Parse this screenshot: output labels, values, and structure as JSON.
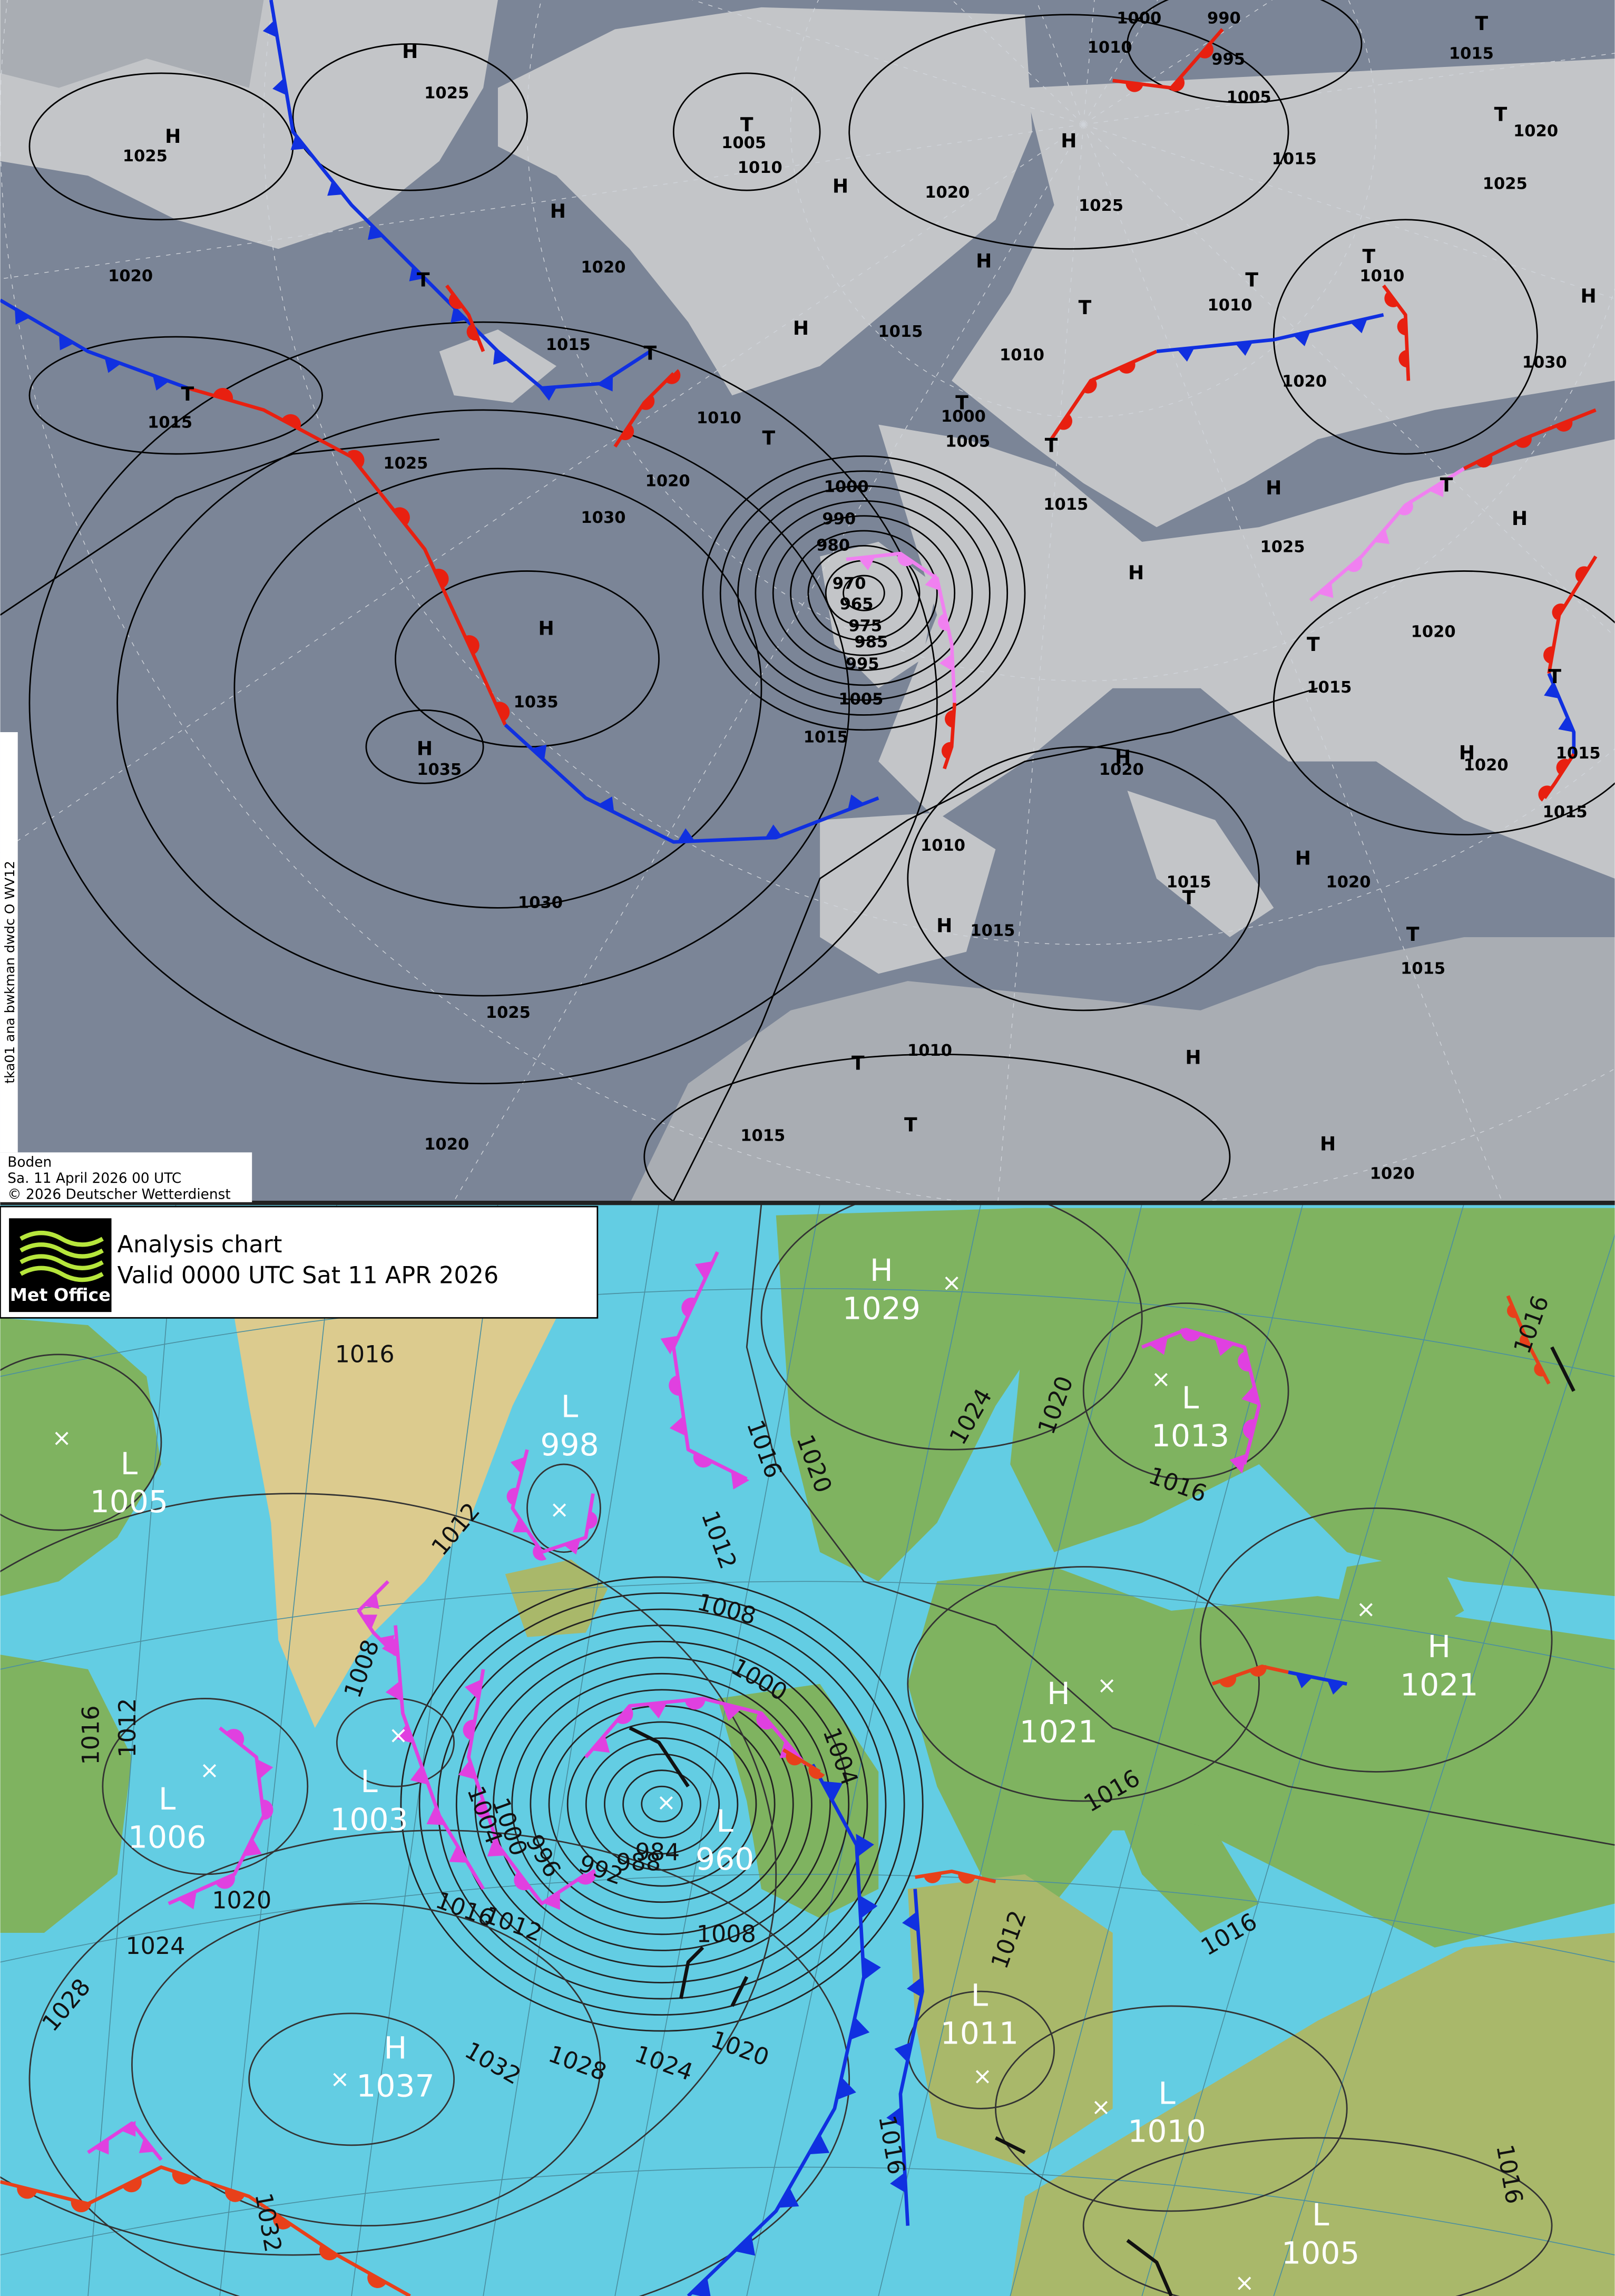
{
  "dwd_map": {
    "side_label": "tka01 ana bwkman dwdc O WV12",
    "caption": [
      "Boden",
      "Sa. 11 April 2026 00 UTC",
      "© 2026 Deutscher Wetterdienst"
    ],
    "pressure_centers": [
      "H",
      "H",
      "T",
      "H",
      "H",
      "T",
      "H",
      "H",
      "T",
      "T",
      "H",
      "T",
      "T",
      "H",
      "T",
      "H",
      "T",
      "T",
      "H",
      "T",
      "T",
      "T",
      "H",
      "H",
      "H",
      "T",
      "T",
      "T",
      "H",
      "H",
      "H",
      "T",
      "H",
      "T",
      "H",
      "T",
      "T",
      "H"
    ],
    "isobar_labels": [
      1025,
      1025,
      1005,
      1010,
      1015,
      1035,
      1035,
      1000,
      1005,
      990,
      980,
      970,
      965,
      975,
      985,
      995,
      1005,
      1000,
      1020,
      1025,
      1030,
      1020,
      1015,
      1010,
      1020,
      1015,
      1010,
      1020,
      1025,
      1000,
      1010,
      990,
      995,
      1005,
      1015,
      1015,
      1020,
      1025,
      1010,
      1010,
      1030,
      1015,
      1025,
      1020,
      1020,
      1015,
      1015,
      1020,
      1020,
      1015,
      1015,
      1010,
      1015,
      1015,
      1020,
      1015,
      1010,
      1015,
      1020,
      1020,
      1025,
      1030
    ]
  },
  "met_office_map": {
    "logo": "Met Office",
    "title": "Analysis chart",
    "valid": "Valid 0000 UTC Sat 11 APR 2026",
    "pressure_centers": [
      {
        "type": "L",
        "pressure": 1005
      },
      {
        "type": "L",
        "pressure": 998
      },
      {
        "type": "L",
        "pressure": 1006
      },
      {
        "type": "L",
        "pressure": 1003
      },
      {
        "type": "L",
        "pressure": 960
      },
      {
        "type": "H",
        "pressure": 1029
      },
      {
        "type": "L",
        "pressure": 1013
      },
      {
        "type": "H",
        "pressure": 1021
      },
      {
        "type": "H",
        "pressure": 1021
      },
      {
        "type": "L",
        "pressure": 1011
      },
      {
        "type": "L",
        "pressure": 1010
      },
      {
        "type": "L",
        "pressure": 1005
      },
      {
        "type": "H",
        "pressure": 1037
      }
    ],
    "isobar_labels": [
      1016,
      1016,
      1012,
      1016,
      1020,
      1012,
      1008,
      1024,
      1020,
      1016,
      1008,
      1000,
      1004,
      1016,
      1012,
      1020,
      1024,
      1028,
      1004,
      1000,
      996,
      992,
      988,
      984,
      1016,
      1012,
      1008,
      1012,
      1016,
      1016,
      1020,
      1024,
      1028,
      1032,
      1016,
      1016,
      1032
    ]
  }
}
